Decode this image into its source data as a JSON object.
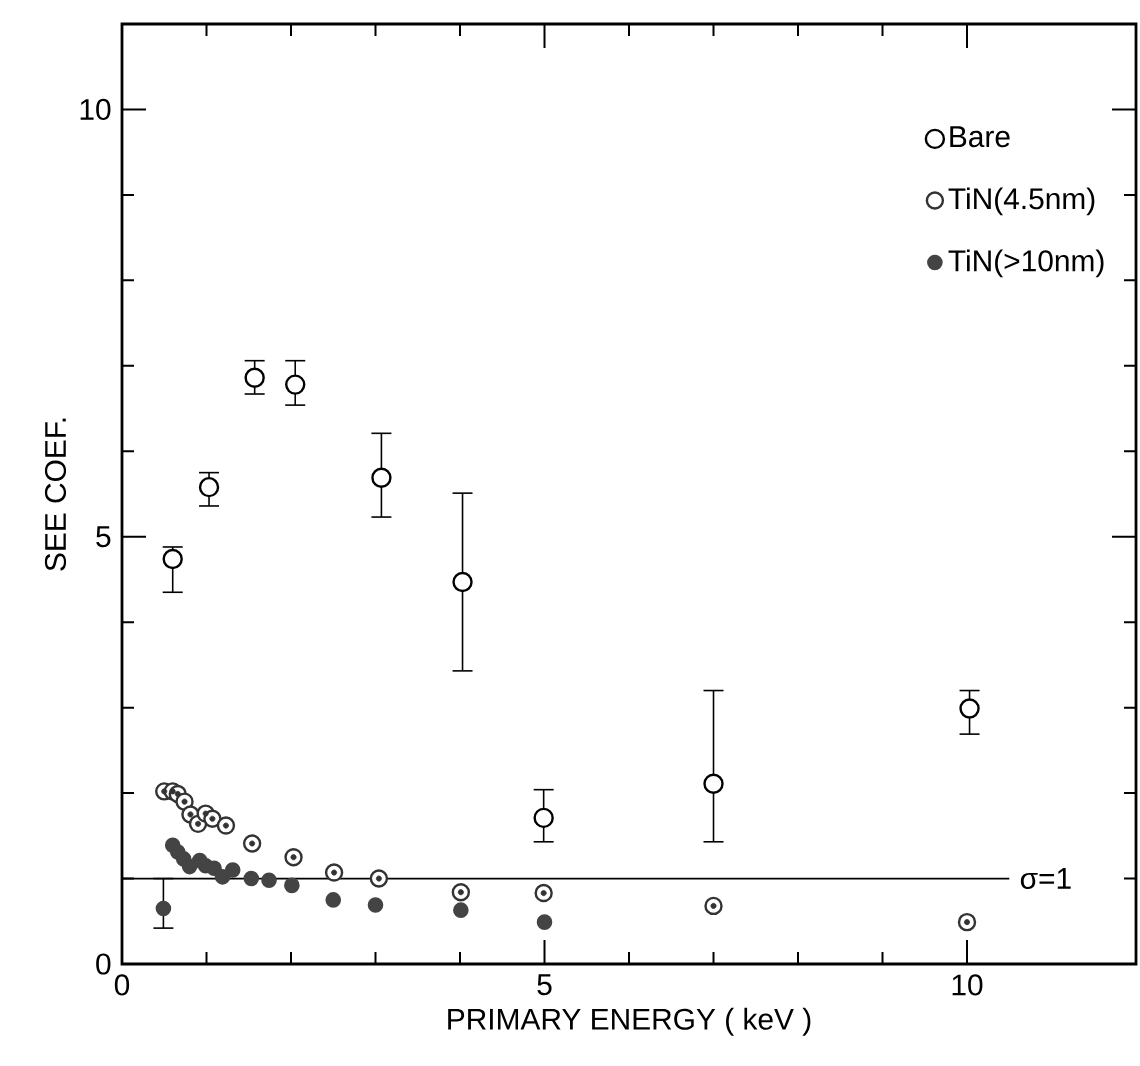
{
  "chart_data": {
    "type": "scatter",
    "xlabel": "PRIMARY ENERGY  ( keV )",
    "ylabel": "SEE COEF.",
    "xlim": [
      0,
      12
    ],
    "ylim": [
      0,
      11
    ],
    "xticks": [
      0,
      5,
      10
    ],
    "yticks": [
      0,
      5,
      10
    ],
    "marker": "circle",
    "legend": "top right",
    "grid": false,
    "ref_lines": [
      {
        "axis": "y",
        "value": 1,
        "label": "σ=1"
      }
    ],
    "series": [
      {
        "name": "Bare",
        "color": "#000000",
        "x": [
          0.6,
          1.03,
          1.57,
          2.05,
          3.07,
          4.03,
          4.99,
          7.0,
          10.03
        ],
        "values": [
          4.74,
          5.58,
          6.86,
          6.78,
          5.69,
          4.47,
          1.71,
          2.11,
          2.99
        ],
        "errors": [
          [
            4.35,
            4.88
          ],
          [
            5.36,
            5.75
          ],
          [
            6.67,
            7.06
          ],
          [
            6.54,
            7.06
          ],
          [
            5.23,
            6.21
          ],
          [
            3.43,
            5.51
          ],
          [
            1.43,
            2.04
          ],
          [
            1.43,
            3.2
          ],
          [
            2.69,
            3.2
          ]
        ]
      },
      {
        "name": "TiN(4.5nm)",
        "color": "#333333",
        "x": [
          0.5,
          0.6,
          0.66,
          0.74,
          0.81,
          0.9,
          0.99,
          1.07,
          1.23,
          1.54,
          2.03,
          2.51,
          3.04,
          4.01,
          4.99,
          7.0,
          10.0
        ],
        "values": [
          2.02,
          2.02,
          1.99,
          1.9,
          1.75,
          1.64,
          1.76,
          1.7,
          1.62,
          1.41,
          1.25,
          1.07,
          1.0,
          0.84,
          0.83,
          0.68,
          0.49
        ]
      },
      {
        "name": "TiN(>10nm)",
        "color": "#444444",
        "x": [
          0.49,
          0.6,
          0.66,
          0.73,
          0.8,
          0.92,
          0.99,
          1.09,
          1.19,
          1.31,
          1.53,
          1.74,
          2.01,
          2.5,
          3.0,
          4.01,
          5.0
        ],
        "values": [
          0.65,
          1.39,
          1.31,
          1.23,
          1.14,
          1.21,
          1.15,
          1.12,
          1.02,
          1.1,
          1.0,
          0.98,
          0.92,
          0.75,
          0.69,
          0.63,
          0.49
        ],
        "errors": [
          [
            0.42,
            1.0
          ],
          null,
          null,
          null,
          null,
          null,
          null,
          null,
          null,
          null,
          null,
          null,
          null,
          null,
          null,
          null,
          null
        ]
      }
    ]
  }
}
